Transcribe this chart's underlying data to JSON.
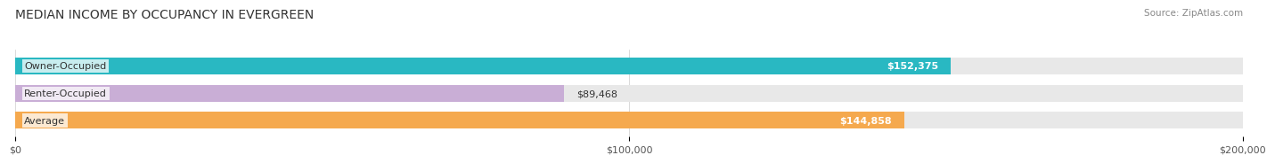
{
  "title": "MEDIAN INCOME BY OCCUPANCY IN EVERGREEN",
  "source": "Source: ZipAtlas.com",
  "categories": [
    "Owner-Occupied",
    "Renter-Occupied",
    "Average"
  ],
  "values": [
    152375,
    89468,
    144858
  ],
  "bar_colors": [
    "#29b8c2",
    "#c9aed6",
    "#f5a94e"
  ],
  "value_labels": [
    "$152,375",
    "$89,468",
    "$144,858"
  ],
  "xlim": [
    0,
    200000
  ],
  "xticks": [
    0,
    100000,
    200000
  ],
  "xticklabels": [
    "$0",
    "$100,000",
    "$200,000"
  ],
  "title_fontsize": 10,
  "label_fontsize": 8,
  "source_fontsize": 7.5,
  "background_color": "#ffffff"
}
